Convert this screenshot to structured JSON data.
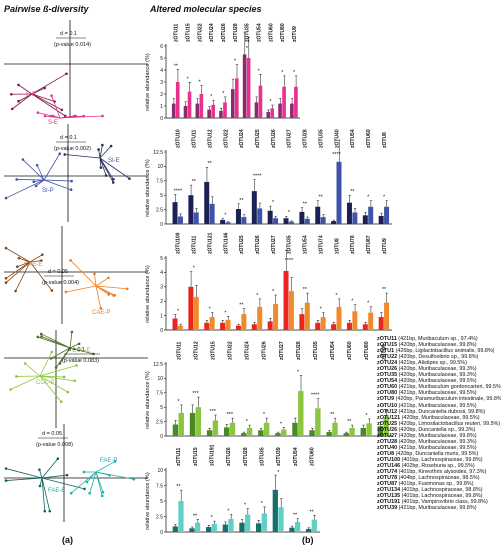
{
  "headers": {
    "left": "Pairwise ß-diversity",
    "right": "Altered molecular species"
  },
  "panel_tags": {
    "a": "(a)",
    "b": "(b)"
  },
  "pcoa_plots": [
    {
      "color": "#e8308c",
      "scale_label": "d = 0.1",
      "pvalue": "(p-value 0.014)",
      "groups": [
        "S-P",
        "S-E"
      ]
    },
    {
      "color": "#3d54a8",
      "scale_label": "d = 0.1",
      "pvalue": "(p-value 0.002)",
      "groups": [
        "SI-E",
        "SI-P"
      ]
    },
    {
      "color": "#f07d1e",
      "scale_label": "d = 0.05",
      "pvalue": "(p-value 0.004)",
      "groups": [
        "CAE-E",
        "CAE-P"
      ]
    },
    {
      "color": "#8cc63f",
      "scale_label": "d = 0.1",
      "pvalue": "(p-value 0.083)",
      "groups": [
        "COL-E",
        "COL-P"
      ]
    },
    {
      "color": "#1fb0a8",
      "scale_label": "d = 0.05",
      "pvalue": "(p-value 0.008)",
      "groups": [
        "FAE-E",
        "FAE-P"
      ]
    }
  ],
  "chart_data": [
    {
      "type": "bar",
      "ylabel": "relative abundance (%)",
      "ylim": [
        0,
        6
      ],
      "yticks": [
        0,
        1,
        2,
        3,
        4,
        5,
        6
      ],
      "colors": [
        "#8a2b6d",
        "#e8308c"
      ],
      "categories": [
        "zOTU11",
        "zOTU15",
        "zOTU22",
        "zOTU24",
        "zOTU26",
        "zOTU28",
        "zOTU35",
        "zOTU54",
        "zOTU60",
        "zOTU80",
        "zOTU9"
      ],
      "series": [
        {
          "values": [
            1.2,
            1.0,
            1.2,
            0.7,
            0.6,
            2.4,
            5.3,
            1.3,
            0.5,
            1.2,
            1.2
          ]
        },
        {
          "values": [
            3.0,
            2.2,
            2.0,
            1.1,
            1.3,
            3.3,
            5.0,
            2.7,
            0.8,
            2.6,
            2.6
          ]
        }
      ],
      "annotations": [
        "**",
        "*",
        "*",
        "*",
        "*",
        "*",
        "*",
        "*",
        "*",
        "*",
        "*"
      ]
    },
    {
      "type": "bar",
      "ylabel": "relative abundance (%)",
      "ylim": [
        0,
        12.5
      ],
      "yticks": [
        0,
        2.5,
        5,
        7.5,
        10,
        12.5
      ],
      "colors": [
        "#1b2154",
        "#3d54a8"
      ],
      "categories": [
        "zOTU10",
        "zOTU11",
        "zOTU12",
        "zOTU22",
        "zOTU24",
        "zOTU25",
        "zOTU26",
        "zOTU27",
        "zOTU28",
        "zOTU35",
        "zOTU40",
        "zOTU54",
        "zOTU60",
        "zOTU8"
      ],
      "series": [
        {
          "values": [
            3.8,
            5.0,
            7.3,
            0.7,
            2.6,
            5.7,
            2.3,
            1.0,
            2.1,
            3.0,
            0.5,
            3.7,
            1.5,
            1.4
          ]
        },
        {
          "values": [
            1.3,
            2.0,
            3.5,
            0.3,
            1.2,
            2.7,
            1.0,
            0.4,
            0.9,
            1.2,
            10.8,
            2.0,
            3.0,
            3.0
          ]
        }
      ],
      "annotations": [
        "****",
        "**",
        "**",
        "*",
        "**",
        "****",
        "*",
        "*",
        "**",
        "**",
        "****",
        "**",
        "*",
        "*"
      ]
    },
    {
      "type": "bar",
      "ylabel": "relative abundance (%)",
      "ylim": [
        0,
        5
      ],
      "yticks": [
        0,
        1,
        2,
        3,
        4,
        5
      ],
      "colors": [
        "#e8261e",
        "#f08a2a"
      ],
      "categories": [
        "zOTU100",
        "zOTU11",
        "zOTU121",
        "zOTU146",
        "zOTU25",
        "zOTU26",
        "zOTU27",
        "zOTU35",
        "zOTU54",
        "zOTU74",
        "zOTU8",
        "zOTU78",
        "zOTU87",
        "zOTU9"
      ],
      "series": [
        {
          "values": [
            0.8,
            3.0,
            0.5,
            0.5,
            0.3,
            0.4,
            0.6,
            4.1,
            1.1,
            0.5,
            0.4,
            0.5,
            0.4,
            0.9
          ]
        },
        {
          "values": [
            0.3,
            2.3,
            0.9,
            0.7,
            1.1,
            1.6,
            1.8,
            2.7,
            1.9,
            0.9,
            1.6,
            1.3,
            1.2,
            1.9
          ]
        }
      ],
      "annotations": [
        "*",
        "*",
        "*",
        "*",
        "**",
        "*",
        "*",
        "****",
        "**",
        "*",
        "*",
        "*",
        "*",
        "**"
      ]
    },
    {
      "type": "bar",
      "ylabel": "relative abundance (%)",
      "ylim": [
        0,
        12.5
      ],
      "yticks": [
        0,
        2.5,
        5,
        7.5,
        10,
        12.5
      ],
      "colors": [
        "#4a8a22",
        "#8cc63f"
      ],
      "categories": [
        "zOTU11",
        "zOTU12",
        "zOTU15",
        "zOTU22",
        "zOTU24",
        "zOTU26",
        "zOTU27",
        "zOTU28",
        "zOTU35",
        "zOTU54",
        "zOTU60",
        "zOTU80",
        "zOTU9"
      ],
      "series": [
        {
          "values": [
            2.0,
            4.0,
            1.0,
            1.5,
            0.5,
            1.0,
            0.5,
            2.3,
            1.0,
            0.7,
            0.5,
            1.4,
            1.7
          ]
        },
        {
          "values": [
            4.0,
            5.0,
            2.7,
            2.3,
            1.4,
            2.3,
            1.1,
            7.8,
            4.8,
            2.3,
            1.4,
            2.2,
            3.3
          ]
        }
      ],
      "annotations": [
        "*",
        "***",
        "***",
        "***",
        "*",
        "*",
        "*",
        "*",
        "****",
        "**",
        "**",
        "*",
        "*"
      ]
    },
    {
      "type": "bar",
      "ylabel": "relative abundance (%)",
      "ylim": [
        0,
        10
      ],
      "yticks": [
        0,
        2.5,
        5,
        7.5,
        10
      ],
      "colors": [
        "#16706a",
        "#5fcfc8"
      ],
      "categories": [
        "zOTU11",
        "zOTU15",
        "zOTU191",
        "zOTU26",
        "zOTU28",
        "zOTU35",
        "zOTU39",
        "zOTU54",
        "zOTU60"
      ],
      "series": [
        {
          "values": [
            0.9,
            0.6,
            0.8,
            1.2,
            1.5,
            1.4,
            6.8,
            0.7,
            0.5
          ]
        },
        {
          "values": [
            5.0,
            1.5,
            1.3,
            2.1,
            2.8,
            3.0,
            4.0,
            1.6,
            2.0
          ]
        }
      ],
      "annotations": [
        "**",
        "**",
        "*",
        "*",
        "*",
        "*",
        "*",
        "**",
        "**"
      ]
    }
  ],
  "legend": [
    {
      "id": "zOTU11",
      "desc": "(421bp, Muribaculum sp., 97.4%)"
    },
    {
      "id": "zOTU15",
      "desc": "(420bp, Muribaculaceae, 99.8%)"
    },
    {
      "id": "zOTU1",
      "desc": "(426bp, Ligilactobacillus animalis, 99.8%)"
    },
    {
      "id": "zOTU22",
      "desc": "(420bp, Desulfovibrio sp., 99.8%)"
    },
    {
      "id": "zOTU24",
      "desc": "(421bp, Alistipes sp., 99.5%)"
    },
    {
      "id": "zOTU26",
      "desc": "(420bp, Muribaculaceae, 99.3%)"
    },
    {
      "id": "zOTU35",
      "desc": "(420bp, Muribaculaceae, 99.3%)"
    },
    {
      "id": "zOTU54",
      "desc": "(420bp, Muribaculaceae, 99.5%)"
    },
    {
      "id": "zOTU60",
      "desc": "(421bp, Muribaculum gordoncarteri, 99.5%)"
    },
    {
      "id": "zOTU80",
      "desc": "(421bp, Muribaculaceae, 99.5%)"
    },
    {
      "id": "zOTU9",
      "desc": "(420bp, Paramuribaculum intestinale, 99.8%)"
    },
    {
      "id": "zOTU10",
      "desc": "(421bp, Muribaculaceae, 99.5%)"
    },
    {
      "id": "zOTU12",
      "desc": "(421bp, Duncaniella dubosii, 99.8%)"
    },
    {
      "id": "zOTU121",
      "desc": "(420bp, Muribaculaceae, 99.5%)"
    },
    {
      "id": "zOTU25",
      "desc": "(420bp, Limosilactobacillus reuteri, 99.5%)"
    },
    {
      "id": "zOTU26",
      "desc": "(420bp, Duncaniella sp., 99.3%)"
    },
    {
      "id": "zOTU27",
      "desc": "(420bp, Muribaculaceae, 99.8%)"
    },
    {
      "id": "zOTU28",
      "desc": "(420bp, Muribaculaceae, 99.3%)"
    },
    {
      "id": "zOTU40",
      "desc": "(421bp, Muribaculaceae, 99.5%)"
    },
    {
      "id": "zOTU8",
      "desc": "(420bp, Duncaniella muris, 99.5%)"
    },
    {
      "id": "zOTU100",
      "desc": "(401bp, Lachnospiraceae, 99.8%)"
    },
    {
      "id": "zOTU146",
      "desc": "(402bp, Roseburia sp., 99.5%)"
    },
    {
      "id": "zOTU74",
      "desc": "(401bp, Kineothrix alysoides, 97.3%)"
    },
    {
      "id": "zOTU78",
      "desc": "(404bp, Lachnospiraceae, 98.5%)"
    },
    {
      "id": "zOTU87",
      "desc": "(401bp, Fusimonas sp., 99.8%)"
    },
    {
      "id": "zOTU134",
      "desc": "(401bp, Lachnospiraceae, 98.8%)"
    },
    {
      "id": "zOTU135",
      "desc": "(401bp, Lachnospiraceae, 99.8%)"
    },
    {
      "id": "zOTU191",
      "desc": "(401bp, Vampirovibrio class, 99.8%)"
    },
    {
      "id": "zOTU39",
      "desc": "(421bp, Muribaculaceae, 99.8%)"
    }
  ]
}
